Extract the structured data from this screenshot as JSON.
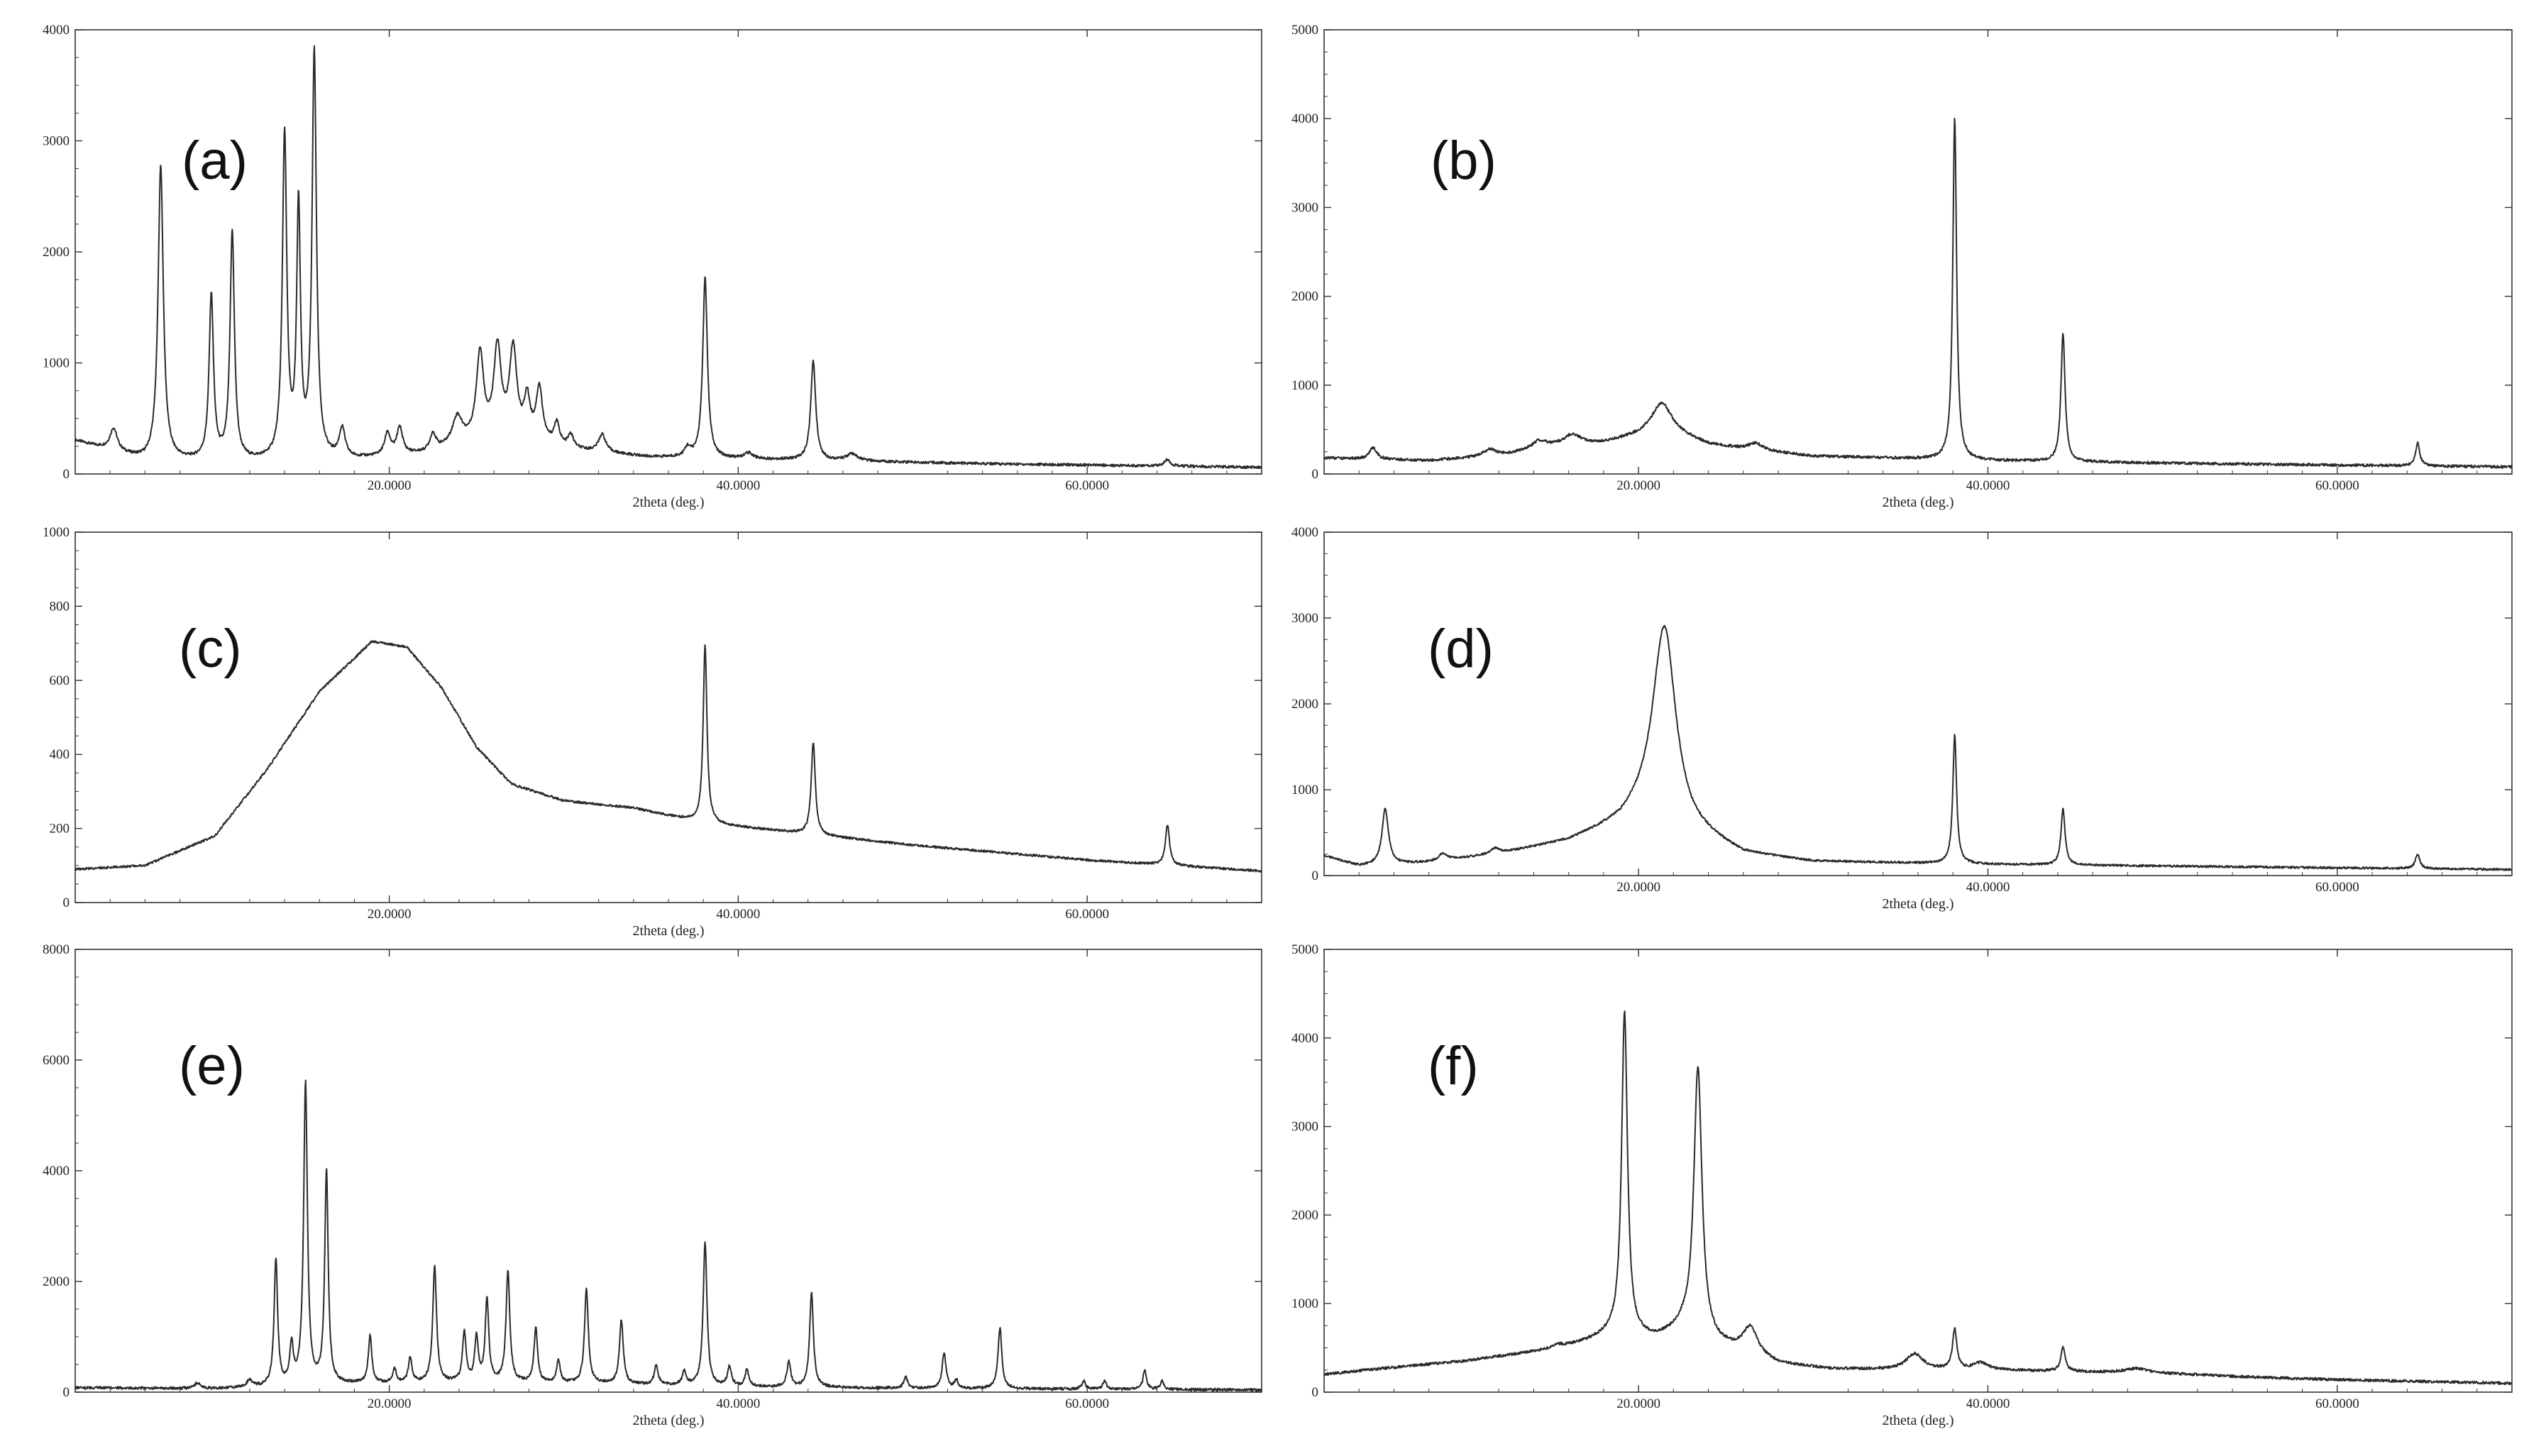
{
  "chart_data": [
    {
      "type": "line",
      "panel_label": "(a)",
      "xlabel": "2theta (deg.)",
      "ylabel": "",
      "xlim": [
        2,
        70
      ],
      "ylim": [
        0,
        4000
      ],
      "x_ticks": [
        20,
        40,
        60
      ],
      "x_tick_labels": [
        "20.0000",
        "40.0000",
        "60.0000"
      ],
      "y_ticks": [
        0,
        1000,
        2000,
        3000,
        4000
      ],
      "y_tick_labels": [
        "0",
        "1000",
        "2000",
        "3000",
        "4000"
      ],
      "grid": false,
      "baseline": [
        [
          2,
          300
        ],
        [
          6,
          120
        ],
        [
          12,
          110
        ],
        [
          18,
          130
        ],
        [
          22,
          180
        ],
        [
          25,
          280
        ],
        [
          27,
          320
        ],
        [
          30,
          220
        ],
        [
          35,
          150
        ],
        [
          45,
          120
        ],
        [
          55,
          90
        ],
        [
          70,
          60
        ]
      ],
      "peaks": [
        {
          "x": 4.2,
          "y": 200,
          "w": 0.25
        },
        {
          "x": 6.9,
          "y": 2650,
          "w": 0.18
        },
        {
          "x": 9.8,
          "y": 1480,
          "w": 0.15
        },
        {
          "x": 11.0,
          "y": 2050,
          "w": 0.15
        },
        {
          "x": 14.0,
          "y": 2920,
          "w": 0.15
        },
        {
          "x": 14.8,
          "y": 2230,
          "w": 0.13
        },
        {
          "x": 15.7,
          "y": 3650,
          "w": 0.15
        },
        {
          "x": 17.3,
          "y": 260,
          "w": 0.2
        },
        {
          "x": 19.9,
          "y": 200,
          "w": 0.2
        },
        {
          "x": 20.6,
          "y": 240,
          "w": 0.2
        },
        {
          "x": 22.5,
          "y": 150,
          "w": 0.2
        },
        {
          "x": 23.9,
          "y": 250,
          "w": 0.35
        },
        {
          "x": 25.2,
          "y": 780,
          "w": 0.25
        },
        {
          "x": 26.2,
          "y": 800,
          "w": 0.25
        },
        {
          "x": 27.1,
          "y": 780,
          "w": 0.25
        },
        {
          "x": 27.9,
          "y": 350,
          "w": 0.2
        },
        {
          "x": 28.6,
          "y": 480,
          "w": 0.22
        },
        {
          "x": 29.6,
          "y": 200,
          "w": 0.2
        },
        {
          "x": 30.4,
          "y": 120,
          "w": 0.2
        },
        {
          "x": 32.2,
          "y": 160,
          "w": 0.25
        },
        {
          "x": 37.1,
          "y": 80,
          "w": 0.2
        },
        {
          "x": 38.1,
          "y": 1620,
          "w": 0.16
        },
        {
          "x": 40.6,
          "y": 50,
          "w": 0.3
        },
        {
          "x": 44.3,
          "y": 890,
          "w": 0.17
        },
        {
          "x": 46.5,
          "y": 60,
          "w": 0.4
        },
        {
          "x": 64.6,
          "y": 60,
          "w": 0.2
        }
      ]
    },
    {
      "type": "line",
      "panel_label": "(b)",
      "xlabel": "2theta (deg.)",
      "ylabel": "",
      "xlim": [
        2,
        70
      ],
      "ylim": [
        0,
        5000
      ],
      "x_ticks": [
        20,
        40,
        60
      ],
      "x_tick_labels": [
        "20.0000",
        "40.0000",
        "60.0000"
      ],
      "y_ticks": [
        0,
        1000,
        2000,
        3000,
        4000,
        5000
      ],
      "y_tick_labels": [
        "0",
        "1000",
        "2000",
        "3000",
        "4000",
        "5000"
      ],
      "grid": false,
      "baseline": [
        [
          2,
          180
        ],
        [
          8,
          150
        ],
        [
          12,
          200
        ],
        [
          15,
          300
        ],
        [
          18,
          350
        ],
        [
          20,
          430
        ],
        [
          21.5,
          500
        ],
        [
          24,
          330
        ],
        [
          26,
          280
        ],
        [
          30,
          200
        ],
        [
          40,
          150
        ],
        [
          55,
          110
        ],
        [
          70,
          80
        ]
      ],
      "peaks": [
        {
          "x": 4.8,
          "y": 130,
          "w": 0.25
        },
        {
          "x": 11.5,
          "y": 80,
          "w": 0.5
        },
        {
          "x": 14.3,
          "y": 90,
          "w": 0.5
        },
        {
          "x": 16.2,
          "y": 120,
          "w": 0.6
        },
        {
          "x": 21.3,
          "y": 300,
          "w": 0.7
        },
        {
          "x": 26.7,
          "y": 80,
          "w": 0.5
        },
        {
          "x": 38.1,
          "y": 3850,
          "w": 0.13
        },
        {
          "x": 44.3,
          "y": 1450,
          "w": 0.14
        },
        {
          "x": 64.6,
          "y": 260,
          "w": 0.15
        }
      ]
    },
    {
      "type": "line",
      "panel_label": "(c)",
      "xlabel": "2theta (deg.)",
      "ylabel": "",
      "xlim": [
        2,
        70
      ],
      "ylim": [
        0,
        1000
      ],
      "x_ticks": [
        20,
        40,
        60
      ],
      "x_tick_labels": [
        "20.0000",
        "40.0000",
        "60.0000"
      ],
      "y_ticks": [
        0,
        200,
        400,
        600,
        800,
        1000
      ],
      "y_tick_labels": [
        "0",
        "200",
        "400",
        "600",
        "800",
        "1000"
      ],
      "grid": false,
      "baseline": [
        [
          2,
          90
        ],
        [
          6,
          100
        ],
        [
          10,
          180
        ],
        [
          13,
          360
        ],
        [
          16,
          570
        ],
        [
          19,
          705
        ],
        [
          21,
          690
        ],
        [
          23,
          580
        ],
        [
          25,
          420
        ],
        [
          27,
          320
        ],
        [
          30,
          275
        ],
        [
          34,
          255
        ],
        [
          38,
          215
        ],
        [
          44,
          185
        ],
        [
          50,
          155
        ],
        [
          60,
          115
        ],
        [
          70,
          85
        ]
      ],
      "peaks": [
        {
          "x": 38.1,
          "y": 480,
          "w": 0.13
        },
        {
          "x": 44.3,
          "y": 250,
          "w": 0.14
        },
        {
          "x": 64.6,
          "y": 110,
          "w": 0.14
        }
      ]
    },
    {
      "type": "line",
      "panel_label": "(d)",
      "xlabel": "2theta (deg.)",
      "ylabel": "",
      "xlim": [
        2,
        70
      ],
      "ylim": [
        0,
        4000
      ],
      "x_ticks": [
        20,
        40,
        60
      ],
      "x_tick_labels": [
        "20.0000",
        "40.0000",
        "60.0000"
      ],
      "y_ticks": [
        0,
        1000,
        2000,
        3000,
        4000
      ],
      "y_tick_labels": [
        "0",
        "1000",
        "2000",
        "3000",
        "4000"
      ],
      "grid": false,
      "baseline": [
        [
          2,
          230
        ],
        [
          4,
          110
        ],
        [
          8,
          150
        ],
        [
          12,
          250
        ],
        [
          16,
          400
        ],
        [
          19,
          620
        ],
        [
          21,
          900
        ],
        [
          23,
          520
        ],
        [
          26,
          250
        ],
        [
          30,
          160
        ],
        [
          40,
          130
        ],
        [
          55,
          100
        ],
        [
          70,
          70
        ]
      ],
      "peaks": [
        {
          "x": 5.5,
          "y": 650,
          "w": 0.22
        },
        {
          "x": 8.8,
          "y": 80,
          "w": 0.3
        },
        {
          "x": 11.8,
          "y": 70,
          "w": 0.3
        },
        {
          "x": 21.5,
          "y": 2100,
          "w": 0.75
        },
        {
          "x": 38.1,
          "y": 1500,
          "w": 0.13
        },
        {
          "x": 44.3,
          "y": 650,
          "w": 0.14
        },
        {
          "x": 64.6,
          "y": 170,
          "w": 0.15
        }
      ]
    },
    {
      "type": "line",
      "panel_label": "(e)",
      "xlabel": "2theta (deg.)",
      "ylabel": "",
      "xlim": [
        2,
        70
      ],
      "ylim": [
        0,
        8000
      ],
      "x_ticks": [
        20,
        40,
        60
      ],
      "x_tick_labels": [
        "20.0000",
        "40.0000",
        "60.0000"
      ],
      "y_ticks": [
        0,
        2000,
        4000,
        6000,
        8000
      ],
      "y_tick_labels": [
        "0",
        "2000",
        "4000",
        "6000",
        "8000"
      ],
      "grid": false,
      "baseline": [
        [
          2,
          80
        ],
        [
          10,
          60
        ],
        [
          14,
          100
        ],
        [
          18,
          150
        ],
        [
          25,
          180
        ],
        [
          32,
          150
        ],
        [
          40,
          100
        ],
        [
          50,
          70
        ],
        [
          70,
          40
        ]
      ],
      "peaks": [
        {
          "x": 9.0,
          "y": 100,
          "w": 0.2
        },
        {
          "x": 12.0,
          "y": 120,
          "w": 0.2
        },
        {
          "x": 13.5,
          "y": 2300,
          "w": 0.12
        },
        {
          "x": 14.4,
          "y": 700,
          "w": 0.12
        },
        {
          "x": 15.2,
          "y": 5450,
          "w": 0.13
        },
        {
          "x": 16.4,
          "y": 3850,
          "w": 0.12
        },
        {
          "x": 18.9,
          "y": 850,
          "w": 0.12
        },
        {
          "x": 20.3,
          "y": 250,
          "w": 0.12
        },
        {
          "x": 21.2,
          "y": 450,
          "w": 0.12
        },
        {
          "x": 22.6,
          "y": 2100,
          "w": 0.13
        },
        {
          "x": 24.3,
          "y": 900,
          "w": 0.12
        },
        {
          "x": 25.0,
          "y": 800,
          "w": 0.12
        },
        {
          "x": 25.6,
          "y": 1500,
          "w": 0.12
        },
        {
          "x": 26.8,
          "y": 2000,
          "w": 0.13
        },
        {
          "x": 28.4,
          "y": 1000,
          "w": 0.12
        },
        {
          "x": 29.7,
          "y": 400,
          "w": 0.12
        },
        {
          "x": 31.3,
          "y": 1700,
          "w": 0.13
        },
        {
          "x": 33.3,
          "y": 1150,
          "w": 0.13
        },
        {
          "x": 35.3,
          "y": 350,
          "w": 0.13
        },
        {
          "x": 36.9,
          "y": 250,
          "w": 0.13
        },
        {
          "x": 38.1,
          "y": 2600,
          "w": 0.13
        },
        {
          "x": 39.5,
          "y": 350,
          "w": 0.13
        },
        {
          "x": 40.5,
          "y": 300,
          "w": 0.13
        },
        {
          "x": 42.9,
          "y": 450,
          "w": 0.13
        },
        {
          "x": 44.2,
          "y": 1700,
          "w": 0.13
        },
        {
          "x": 49.6,
          "y": 200,
          "w": 0.13
        },
        {
          "x": 51.8,
          "y": 650,
          "w": 0.13
        },
        {
          "x": 52.5,
          "y": 150,
          "w": 0.12
        },
        {
          "x": 55.0,
          "y": 1100,
          "w": 0.13
        },
        {
          "x": 59.8,
          "y": 150,
          "w": 0.12
        },
        {
          "x": 61.0,
          "y": 150,
          "w": 0.12
        },
        {
          "x": 63.3,
          "y": 350,
          "w": 0.12
        },
        {
          "x": 64.3,
          "y": 150,
          "w": 0.12
        }
      ]
    },
    {
      "type": "line",
      "panel_label": "(f)",
      "xlabel": "2theta (deg.)",
      "ylabel": "",
      "xlim": [
        2,
        70
      ],
      "ylim": [
        0,
        5000
      ],
      "x_ticks": [
        20,
        40,
        60
      ],
      "x_tick_labels": [
        "20.0000",
        "40.0000",
        "60.0000"
      ],
      "y_ticks": [
        0,
        1000,
        2000,
        3000,
        4000,
        5000
      ],
      "y_tick_labels": [
        "0",
        "1000",
        "2000",
        "3000",
        "4000",
        "5000"
      ],
      "grid": false,
      "baseline": [
        [
          2,
          200
        ],
        [
          5,
          260
        ],
        [
          10,
          350
        ],
        [
          15,
          480
        ],
        [
          17,
          570
        ],
        [
          18.5,
          650
        ],
        [
          21,
          600
        ],
        [
          22.5,
          700
        ],
        [
          24,
          550
        ],
        [
          26,
          450
        ],
        [
          28,
          320
        ],
        [
          31,
          260
        ],
        [
          35,
          250
        ],
        [
          40,
          250
        ],
        [
          45,
          230
        ],
        [
          50,
          210
        ],
        [
          55,
          170
        ],
        [
          60,
          140
        ],
        [
          70,
          100
        ]
      ],
      "peaks": [
        {
          "x": 15.3,
          "y": 40,
          "w": 0.4
        },
        {
          "x": 19.2,
          "y": 3650,
          "w": 0.2
        },
        {
          "x": 23.4,
          "y": 3050,
          "w": 0.28
        },
        {
          "x": 26.4,
          "y": 300,
          "w": 0.5
        },
        {
          "x": 35.8,
          "y": 180,
          "w": 0.6
        },
        {
          "x": 38.1,
          "y": 450,
          "w": 0.15
        },
        {
          "x": 39.6,
          "y": 80,
          "w": 0.5
        },
        {
          "x": 44.3,
          "y": 270,
          "w": 0.15
        },
        {
          "x": 48.5,
          "y": 50,
          "w": 0.8
        }
      ]
    }
  ]
}
